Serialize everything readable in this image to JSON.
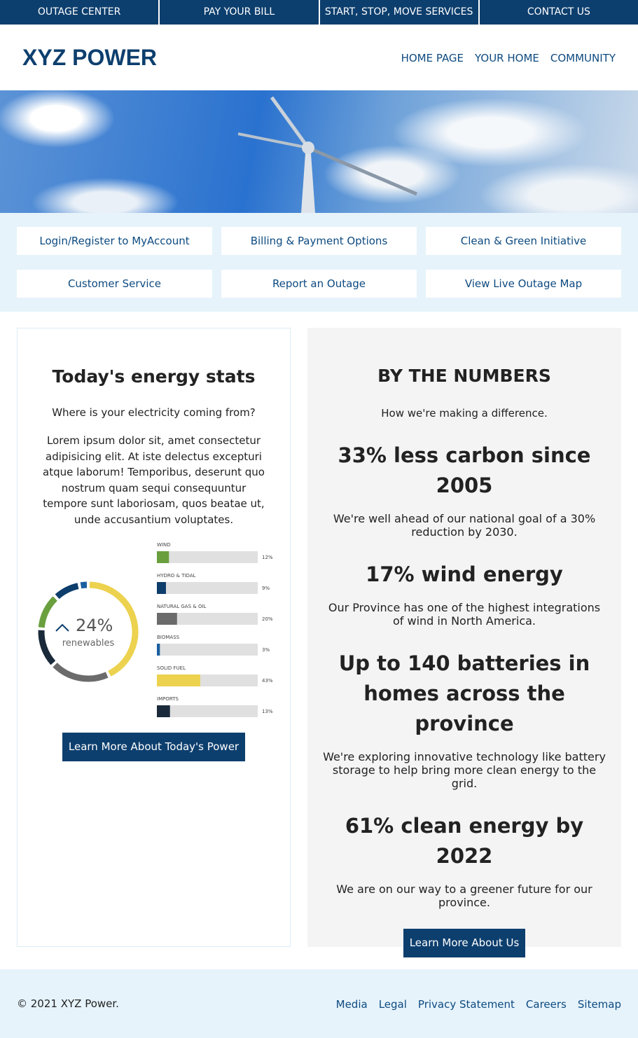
{
  "top_nav": [
    "OUTAGE CENTER",
    "PAY YOUR BILL",
    "START, STOP, MOVE SERVICES",
    "CONTACT US"
  ],
  "header": {
    "logo": "XYZ POWER",
    "nav": [
      "HOME PAGE",
      "YOUR HOME",
      "COMMUNITY"
    ]
  },
  "quick_links": [
    "Login/Register to MyAccount",
    "Billing & Payment Options",
    "Clean & Green Initiative",
    "Customer Service",
    "Report an Outage",
    "View Live Outage Map"
  ],
  "energy_stats": {
    "title": "Today's energy stats",
    "question": "Where is your electricity coming from?",
    "body": "Lorem ipsum dolor sit, amet consectetur adipisicing elit. At iste delectus excepturi atque laborum! Temporibus, deserunt quo nostrum quam sequi consequuntur tempore sunt laboriosam, quos beatae ut, unde accusantium voluptates.",
    "chart": {
      "type": "bar",
      "categories": [
        "WIND",
        "HYDRO & TIDAL",
        "NATURAL GAS & OIL",
        "BIOMASS",
        "SOLID FUEL",
        "IMPORTS"
      ],
      "values": [
        12,
        9,
        20,
        3,
        43,
        13
      ],
      "value_labels": [
        "12%",
        "9%",
        "20%",
        "3%",
        "43%",
        "13%"
      ],
      "colors": [
        "#6a9f3e",
        "#0d3d6b",
        "#6b6b6b",
        "#1a5fa0",
        "#ecd24e",
        "#1b2a3a"
      ],
      "xlim": [
        0,
        100
      ]
    },
    "donut": {
      "value": 24,
      "value_label": "24%",
      "label": "renewables"
    },
    "button": "Learn More About Today's Power"
  },
  "numbers": {
    "title": "BY THE NUMBERS",
    "subtitle": "How we're making a difference.",
    "items": [
      {
        "heading": "33% less carbon since 2005",
        "text": "We're well ahead of our national goal of a 30% reduction by 2030."
      },
      {
        "heading": "17% wind energy",
        "text": "Our Province has one of the highest integrations of wind in North America."
      },
      {
        "heading": "Up to 140 batteries in homes across the province",
        "text": "We're exploring innovative technology like battery storage to help bring more clean energy to the grid."
      },
      {
        "heading": "61% clean energy by 2022",
        "text": "We are on our way to a greener future for our province."
      }
    ],
    "button": "Learn More About Us"
  },
  "footer": {
    "copyright": "© 2021 XYZ Power.",
    "links": [
      "Media",
      "Legal",
      "Privacy Statement",
      "Careers",
      "Sitemap"
    ]
  }
}
